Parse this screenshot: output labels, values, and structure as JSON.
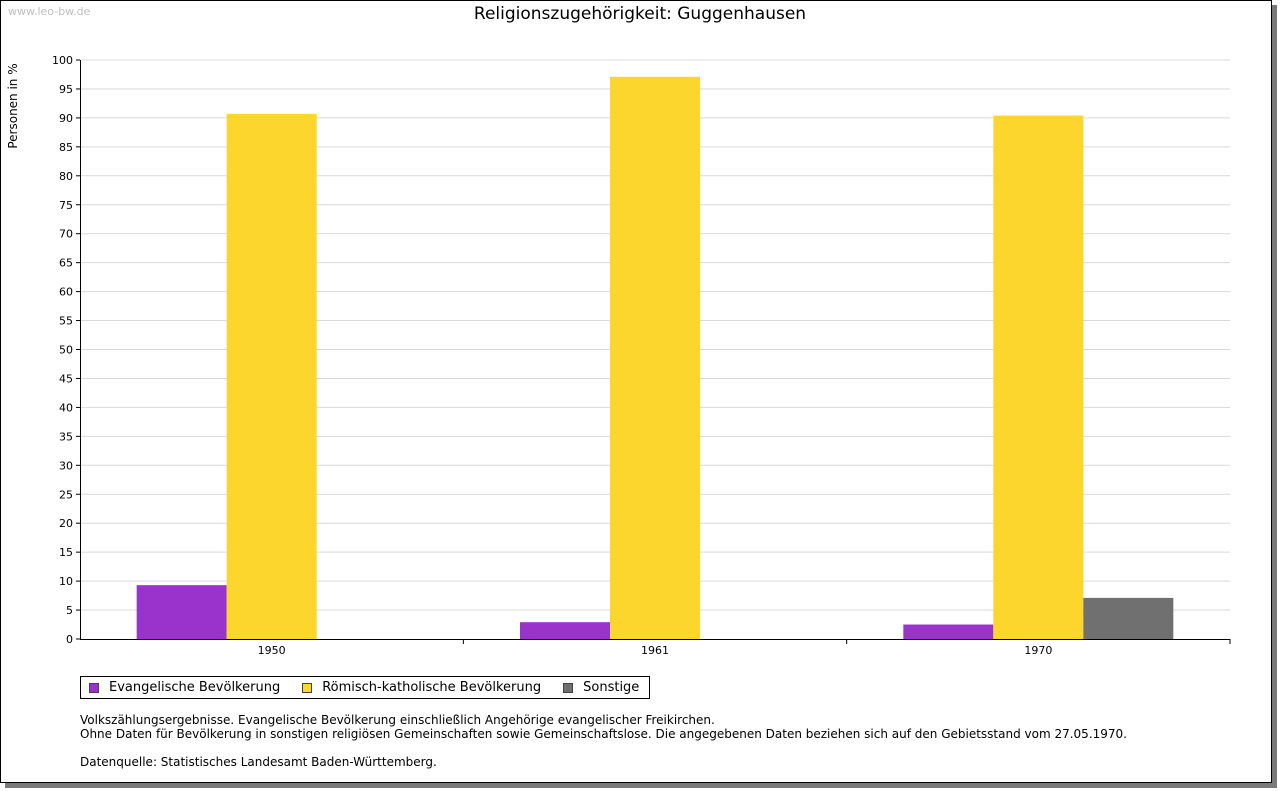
{
  "watermark": "www.leo-bw.de",
  "chart_data": {
    "type": "bar",
    "title": "Religionszugehörigkeit: Guggenhausen",
    "ylabel": "Personen in %",
    "xlabel": "",
    "ylim": [
      0,
      100
    ],
    "ytick_step": 5,
    "grid": true,
    "legend_position": "bottom-left",
    "categories": [
      "1950",
      "1961",
      "1970"
    ],
    "series": [
      {
        "name": "Evangelische Bevölkerung",
        "color": "#9933cc",
        "values": [
          9.3,
          2.9,
          2.5
        ]
      },
      {
        "name": "Römisch-katholische Bevölkerung",
        "color": "#fcd52d",
        "values": [
          90.7,
          97.1,
          90.4
        ]
      },
      {
        "name": "Sonstige",
        "color": "#707070",
        "values": [
          null,
          null,
          7.1
        ]
      }
    ]
  },
  "notes": {
    "line1": "Volkszählungsergebnisse. Evangelische Bevölkerung einschließlich Angehörige evangelischer Freikirchen.",
    "line2": "Ohne Daten für Bevölkerung in sonstigen religiösen Gemeinschaften sowie Gemeinschaftslose. Die angegebenen Daten beziehen sich auf den Gebietsstand vom 27.05.1970.",
    "source": "Datenquelle: Statistisches Landesamt Baden-Württemberg."
  }
}
